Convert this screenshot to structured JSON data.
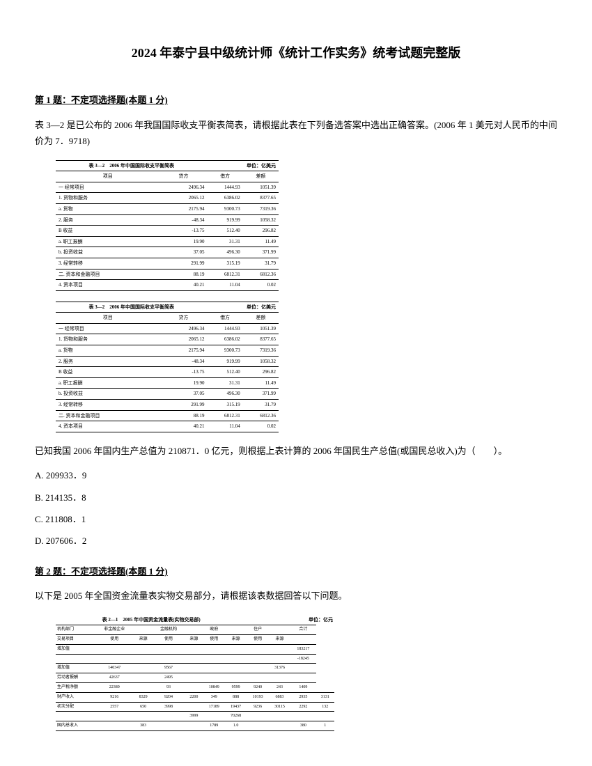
{
  "title": "2024 年泰宁县中级统计师《统计工作实务》统考试题完整版",
  "q1": {
    "header": "第 1 题：不定项选择题(本题 1 分)",
    "intro": "表 3—2 是已公布的 2006 年我国国际收支平衡表简表，请根据此表在下列备选答案中选出正确答案。(2006 年 1 美元对人民币的中间价为 7．9718)",
    "table": {
      "caption_left": "表 3—2　2006 年中国国际收支平衡简表",
      "caption_right": "单位：亿美元",
      "head": [
        "项目",
        "贷方",
        "借方",
        "差额"
      ],
      "rows": [
        [
          "一 经常项目",
          "2496.34",
          "1444.93",
          "1051.39"
        ],
        [
          "1. 货物和服务",
          "2065.12",
          "6386.02",
          "8377.65"
        ],
        [
          "a. 货物",
          "2175.94",
          "9300.73",
          "7319.36"
        ],
        [
          "2. 服务",
          "-48.34",
          "919.99",
          "1058.32"
        ],
        [
          "B 收益",
          "-13.75",
          "512.40",
          "296.82"
        ],
        [
          "a. 职工报酬",
          "19.90",
          "31.31",
          "11.49"
        ],
        [
          "b. 投资收益",
          "37.05",
          "496.30",
          "371.99"
        ],
        [
          "3. 经常转移",
          "291.99",
          "315.19",
          "31.79"
        ],
        [
          "二. 资本和金融项目",
          "88.19",
          "6812.31",
          "6812.36"
        ],
        [
          "4. 资本项目",
          "40.21",
          "11.04",
          "0.02"
        ]
      ]
    },
    "after": "已知我国 2006 年国内生产总值为 210871．0 亿元，则根据上表计算的 2006 年国民生产总值(或国民总收入)为（　　）。",
    "options": {
      "a": "A. 209933．9",
      "b": "B. 214135．8",
      "c": "C. 211808．1",
      "d": "D. 207606．2"
    }
  },
  "q2": {
    "header": "第 2 题：不定项选择题(本题 1 分)",
    "intro": "以下是 2005 年全国资金流量表实物交易部分，请根据该表数据回答以下问题。",
    "table": {
      "caption_left": "表 2—1　2005 年中国资金流量表(实物交易部)",
      "caption_right": "单位：亿元",
      "head1": [
        "机构部门",
        "非金融企业",
        "",
        "金融机构",
        "",
        "政府",
        "",
        "住户",
        "",
        "合计"
      ],
      "head2": [
        "交易项目",
        "使用",
        "来源",
        "使用",
        "来源",
        "使用",
        "来源",
        "使用",
        "来源",
        ""
      ],
      "rows": [
        [
          "增加值",
          "",
          "",
          "",
          "",
          "",
          "",
          "",
          "",
          "183217"
        ],
        [
          "　　　",
          "",
          "",
          "",
          "",
          "",
          "",
          "",
          "",
          "-18245"
        ],
        [
          "增加值",
          "140347",
          "",
          "9567",
          "",
          "",
          "",
          "",
          "31376",
          ""
        ],
        [
          "劳动者报酬",
          "42637",
          "",
          "2495",
          "",
          "",
          "",
          "",
          "",
          ""
        ],
        [
          "生产税净额",
          "22389",
          "",
          "93",
          "",
          "10849",
          "9599",
          "9240",
          "243",
          "1409"
        ],
        [
          "财产收入",
          "9216",
          "8329",
          "9204",
          "2200",
          "349",
          "888",
          "10193",
          "6883",
          "2935",
          "3131"
        ],
        [
          "初次分配",
          "2557",
          "650",
          "3998",
          "",
          "17189",
          "19437",
          "9236",
          "30115",
          "2292",
          "132"
        ],
        [
          "　　　",
          "",
          "",
          "",
          "3999",
          "",
          "70268",
          "",
          "",
          "",
          ""
        ],
        [
          "国内总收入",
          "",
          "383",
          "",
          "",
          "1789",
          "1.0",
          "",
          "",
          "380",
          "1"
        ]
      ]
    }
  }
}
